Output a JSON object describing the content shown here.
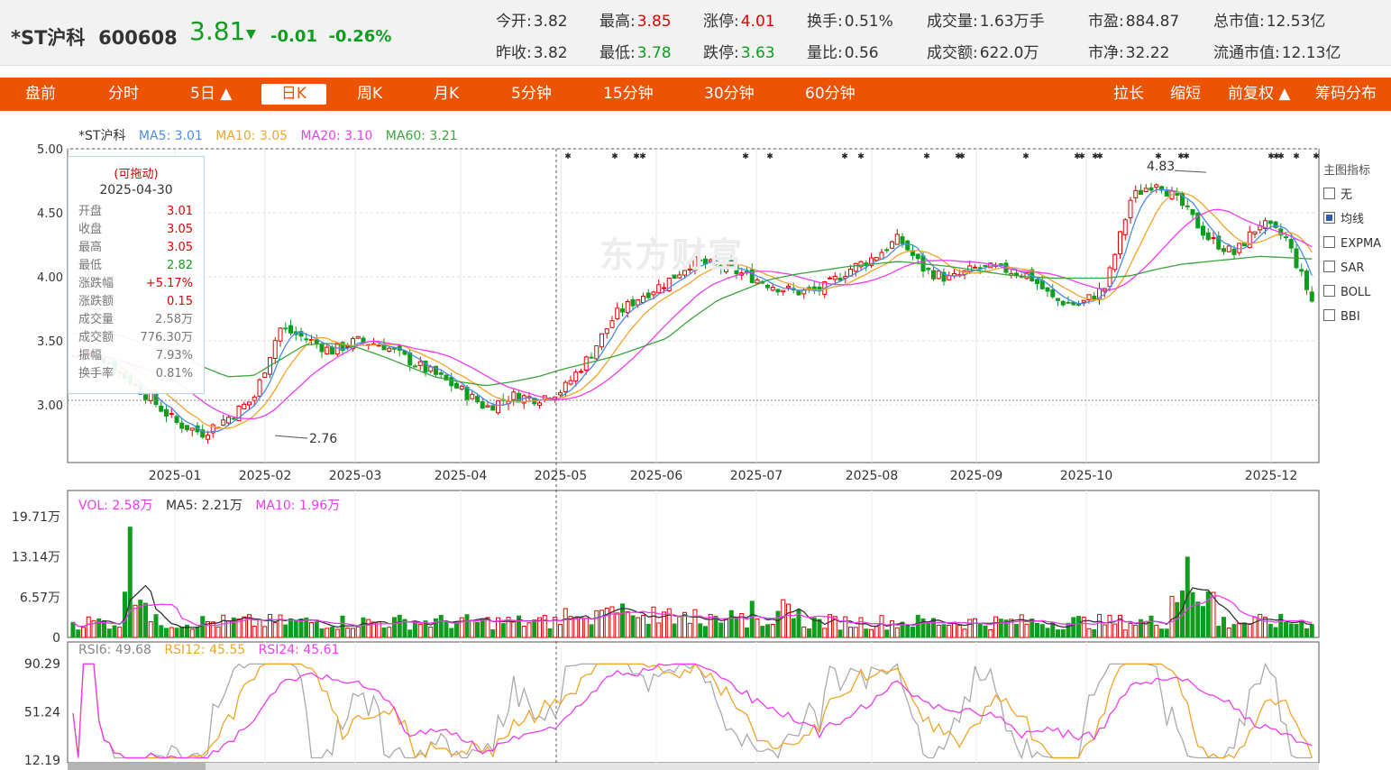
{
  "stock": {
    "name": "*ST沪科",
    "code": "600608",
    "price": "3.81",
    "arrow": "▼",
    "change": "-0.01",
    "change_pct": "-0.26%"
  },
  "quotes": [
    {
      "label": "今开:",
      "value": "3.82",
      "tone": "flat"
    },
    {
      "label": "最高:",
      "value": "3.85",
      "tone": "up"
    },
    {
      "label": "涨停:",
      "value": "4.01",
      "tone": "up"
    },
    {
      "label": "换手:",
      "value": "0.51%",
      "tone": "flat"
    },
    {
      "label": "成交量:",
      "value": "1.63万手",
      "tone": "flat"
    },
    {
      "label": "市盈:",
      "value": "884.87",
      "tone": "flat"
    },
    {
      "label": "总市值:",
      "value": "12.53亿",
      "tone": "flat"
    },
    {
      "label": "昨收:",
      "value": "3.82",
      "tone": "flat"
    },
    {
      "label": "最低:",
      "value": "3.78",
      "tone": "down"
    },
    {
      "label": "跌停:",
      "value": "3.63",
      "tone": "down"
    },
    {
      "label": "量比:",
      "value": "0.56",
      "tone": "flat"
    },
    {
      "label": "成交额:",
      "value": "622.0万",
      "tone": "flat"
    },
    {
      "label": "市净:",
      "value": "32.22",
      "tone": "flat"
    },
    {
      "label": "流通市值:",
      "value": "12.13亿",
      "tone": "flat"
    }
  ],
  "nav": {
    "left": [
      "盘前",
      "分时",
      "5日 ▲",
      "日K",
      "周K",
      "月K",
      "5分钟",
      "15分钟",
      "30分钟",
      "60分钟"
    ],
    "active": "日K",
    "right": [
      "拉长",
      "缩短",
      "前复权 ▲",
      "筹码分布"
    ]
  },
  "main_legend": {
    "name": "*ST沪科",
    "ma5": "MA5: 3.01",
    "ma10": "MA10: 3.05",
    "ma20": "MA20: 3.10",
    "ma60": "MA60: 3.21"
  },
  "vol_legend": {
    "vol": "VOL: 2.58万",
    "ma5": "MA5: 2.21万",
    "ma10": "MA10: 1.96万"
  },
  "rsi_legend": {
    "rsi6": "RSI6: 49.68",
    "rsi12": "RSI12: 45.55",
    "rsi24": "RSI24: 45.61"
  },
  "tooltip": {
    "hint": "(可拖动)",
    "date": "2025-04-30",
    "rows": [
      {
        "k": "开盘",
        "v": "3.01",
        "tone": "up"
      },
      {
        "k": "收盘",
        "v": "3.05",
        "tone": "up"
      },
      {
        "k": "最高",
        "v": "3.05",
        "tone": "up"
      },
      {
        "k": "最低",
        "v": "2.82",
        "tone": "down"
      },
      {
        "k": "涨跌幅",
        "v": "+5.17%",
        "tone": "up"
      },
      {
        "k": "涨跌额",
        "v": "0.15",
        "tone": "up"
      },
      {
        "k": "成交量",
        "v": "2.58万",
        "tone": "flat"
      },
      {
        "k": "成交额",
        "v": "776.30万",
        "tone": "flat"
      },
      {
        "k": "振幅",
        "v": "7.93%",
        "tone": "flat"
      },
      {
        "k": "换手率",
        "v": "0.81%",
        "tone": "flat"
      }
    ]
  },
  "indicators": {
    "title": "主图指标",
    "items": [
      "无",
      "均线",
      "EXPMA",
      "SAR",
      "BOLL",
      "BBI"
    ],
    "checked": "均线"
  },
  "watermark": "东方财富",
  "colors": {
    "up": "#e30000",
    "down": "#109d1f",
    "ma5": "#4a8be8",
    "ma10": "#f0a428",
    "ma20": "#ee3cee",
    "ma60": "#3aa53a",
    "nav": "#ea5404"
  },
  "chart_data": [
    {
      "type": "candlestick",
      "panel": "price",
      "y_ticks": [
        "5.00",
        "4.50",
        "4.00",
        "3.50",
        "3.00"
      ],
      "ylim": [
        2.55,
        5.0
      ],
      "x_ticks": [
        "2025-01",
        "2025-02",
        "2025-03",
        "2025-04",
        "2025-05",
        "2025-06",
        "2025-07",
        "2025-08",
        "2025-09",
        "2025-10",
        "2025-12"
      ],
      "annotations": [
        {
          "label": "2.76",
          "value": 2.76
        },
        {
          "label": "4.83",
          "value": 4.83
        }
      ],
      "close_anchors": [
        3.38,
        3.4,
        3.22,
        3.05,
        2.86,
        2.78,
        2.9,
        3.05,
        3.6,
        3.52,
        3.42,
        3.5,
        3.47,
        3.35,
        3.24,
        3.12,
        2.98,
        3.07,
        3.05,
        3.12,
        3.38,
        3.7,
        3.85,
        3.96,
        4.12,
        4.08,
        4.02,
        3.94,
        3.88,
        3.9,
        4.05,
        4.15,
        4.3,
        4.05,
        3.98,
        4.07,
        4.06,
        4.02,
        3.82,
        3.78,
        3.92,
        4.62,
        4.75,
        4.55,
        4.3,
        4.18,
        4.42,
        4.3,
        3.81
      ],
      "ma60_anchors": [
        3.55,
        3.58,
        3.53,
        3.46,
        3.42,
        3.3,
        3.22,
        3.23,
        3.35,
        3.47,
        3.48,
        3.45,
        3.38,
        3.3,
        3.22,
        3.18,
        3.15,
        3.18,
        3.22,
        3.28,
        3.33,
        3.38,
        3.45,
        3.52,
        3.68,
        3.82,
        3.9,
        3.98,
        4.02,
        4.05,
        4.08,
        4.1,
        4.12,
        4.1,
        4.08,
        4.05,
        4.02,
        4.0,
        3.99,
        3.99,
        3.99,
        4.01,
        4.06,
        4.1,
        4.12,
        4.14,
        4.16,
        4.15,
        4.14
      ]
    },
    {
      "type": "bar",
      "panel": "volume",
      "y_ticks": [
        "19.71万",
        "13.14万",
        "6.57万",
        "0"
      ],
      "ylim": [
        0,
        19.71
      ],
      "spikes": [
        {
          "value": 18.0
        },
        {
          "value": 13.1
        }
      ]
    },
    {
      "type": "line",
      "panel": "rsi",
      "y_ticks": [
        "90.29",
        "51.24",
        "12.19"
      ],
      "ylim": [
        12.19,
        90.29
      ]
    }
  ]
}
